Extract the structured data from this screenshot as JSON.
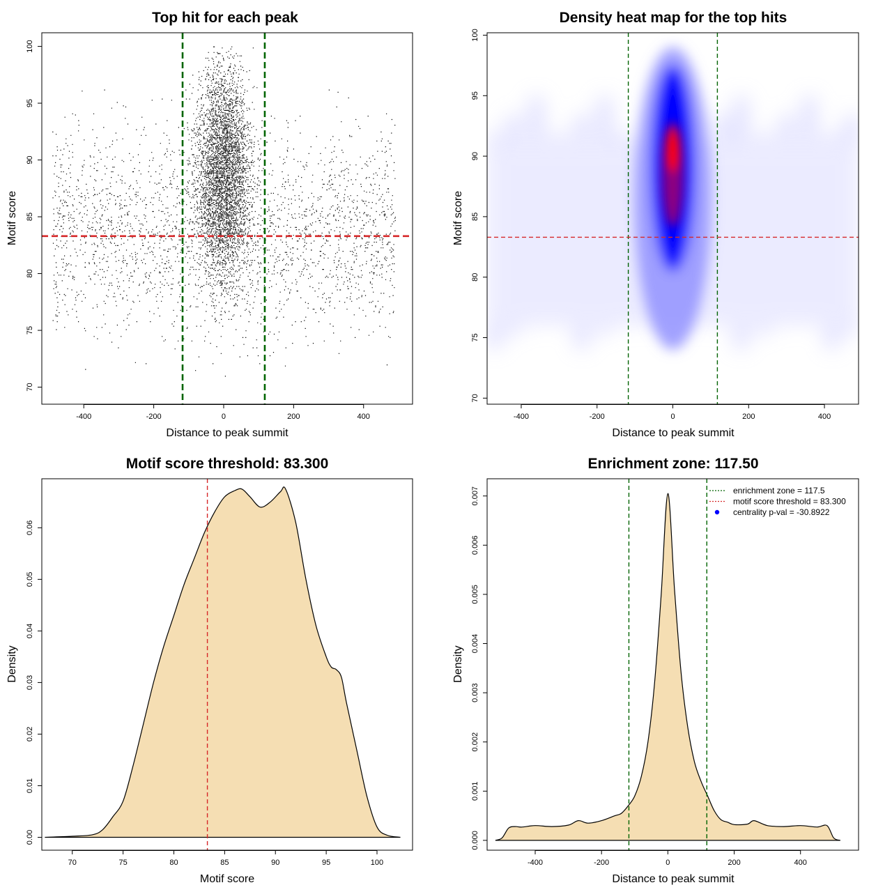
{
  "colors": {
    "threshold": "#d62728",
    "zone": "#006400",
    "fill": "#f5deb3",
    "heat_low": "#ffffff",
    "heat_mid": "#0000ff",
    "heat_high": "#ff0000",
    "point": "#000000"
  },
  "chart_data": [
    {
      "id": "scatter",
      "type": "scatter",
      "title": "Top hit for each peak",
      "xlabel": "Distance to peak summit",
      "ylabel": "Motif score",
      "xlim": [
        -520,
        540
      ],
      "ylim": [
        68.5,
        101.2
      ],
      "xticks": [
        -400,
        -200,
        0,
        200,
        400
      ],
      "xtick_labels": [
        "-400",
        "-200",
        "0",
        "200",
        "400"
      ],
      "yticks": [
        70,
        75,
        80,
        85,
        90,
        95,
        100
      ],
      "ytick_labels": [
        "70",
        "75",
        "80",
        "85",
        "90",
        "95",
        "100"
      ],
      "hline": 83.3,
      "vlines": [
        -117.5,
        117.5
      ],
      "point_clusters": [
        {
          "name": "central",
          "n": 4200,
          "x_center": 0,
          "x_sd": 38,
          "y_center": 89,
          "y_sd": 4.8
        },
        {
          "name": "background",
          "n": 2600,
          "x_range": [
            -490,
            490
          ],
          "y_center": 84,
          "y_sd": 4.5
        }
      ]
    },
    {
      "id": "heatmap",
      "type": "heatmap",
      "title": "Density heat map for the top hits",
      "xlabel": "Distance to peak summit",
      "ylabel": "Motif score",
      "xlim": [
        -490,
        490
      ],
      "ylim": [
        69.5,
        100.2
      ],
      "xticks": [
        -400,
        -200,
        0,
        200,
        400
      ],
      "xtick_labels": [
        "-400",
        "-200",
        "0",
        "200",
        "400"
      ],
      "yticks": [
        70,
        75,
        80,
        85,
        90,
        95,
        100
      ],
      "ytick_labels": [
        "70",
        "75",
        "80",
        "85",
        "90",
        "95",
        "100"
      ],
      "hline": 83.3,
      "vlines": [
        -117.5,
        117.5
      ],
      "density_peak": {
        "x": 0,
        "y": 90.5
      }
    },
    {
      "id": "score-density",
      "type": "area",
      "title": "Motif score threshold: 83.300",
      "xlabel": "Motif score",
      "ylabel": "Density",
      "xlim": [
        67,
        103.5
      ],
      "ylim": [
        -0.0025,
        0.0695
      ],
      "xticks": [
        70,
        75,
        80,
        85,
        90,
        95,
        100
      ],
      "xtick_labels": [
        "70",
        "75",
        "80",
        "85",
        "90",
        "95",
        "100"
      ],
      "yticks": [
        0,
        0.01,
        0.02,
        0.03,
        0.04,
        0.05,
        0.06
      ],
      "ytick_labels": [
        "0.00",
        "0.01",
        "0.02",
        "0.03",
        "0.04",
        "0.05",
        "0.06"
      ],
      "vlines": [
        83.3
      ],
      "x": [
        67.3,
        70,
        72,
        73,
        74,
        75,
        76,
        77,
        78,
        79,
        80,
        81,
        82,
        83,
        84,
        85,
        86,
        86.7,
        87.5,
        88.5,
        89.5,
        90.5,
        91,
        92,
        93,
        94,
        95,
        95.5,
        96,
        96.5,
        97,
        98,
        99,
        100,
        101,
        102.3
      ],
      "y": [
        0,
        0.0002,
        0.0005,
        0.0015,
        0.004,
        0.007,
        0.014,
        0.022,
        0.03,
        0.037,
        0.043,
        0.049,
        0.054,
        0.059,
        0.063,
        0.066,
        0.0672,
        0.0675,
        0.066,
        0.064,
        0.065,
        0.067,
        0.0675,
        0.061,
        0.05,
        0.041,
        0.035,
        0.033,
        0.0325,
        0.031,
        0.026,
        0.017,
        0.008,
        0.002,
        0.0004,
        0
      ]
    },
    {
      "id": "distance-density",
      "type": "area",
      "title": "Enrichment zone: 117.50",
      "xlabel": "Distance to peak summit",
      "ylabel": "Density",
      "xlim": [
        -545,
        575
      ],
      "ylim": [
        -0.0002,
        0.00735
      ],
      "xticks": [
        -400,
        -200,
        0,
        200,
        400
      ],
      "xtick_labels": [
        "-400",
        "-200",
        "0",
        "200",
        "400"
      ],
      "yticks": [
        0,
        0.001,
        0.002,
        0.003,
        0.004,
        0.005,
        0.006,
        0.007
      ],
      "ytick_labels": [
        "0.000",
        "0.001",
        "0.002",
        "0.003",
        "0.004",
        "0.005",
        "0.006",
        "0.007"
      ],
      "vlines": [
        -117.5,
        117.5
      ],
      "x": [
        -520,
        -500,
        -480,
        -460,
        -440,
        -400,
        -350,
        -300,
        -270,
        -240,
        -200,
        -160,
        -140,
        -120,
        -100,
        -80,
        -60,
        -40,
        -20,
        0,
        20,
        40,
        60,
        80,
        100,
        120,
        140,
        160,
        180,
        200,
        240,
        260,
        300,
        350,
        400,
        450,
        480,
        500,
        520
      ],
      "y": [
        0,
        5e-05,
        0.00025,
        0.00028,
        0.00027,
        0.0003,
        0.00028,
        0.00031,
        0.0004,
        0.00035,
        0.0004,
        0.0005,
        0.00055,
        0.0007,
        0.0009,
        0.0013,
        0.002,
        0.0032,
        0.005,
        0.00705,
        0.0051,
        0.0034,
        0.0023,
        0.0016,
        0.0012,
        0.0009,
        0.0006,
        0.00042,
        0.00037,
        0.00032,
        0.00033,
        0.0004,
        0.0003,
        0.00028,
        0.0003,
        0.00027,
        0.0003,
        5e-05,
        0
      ],
      "legend": {
        "position": "top-right",
        "entries": [
          {
            "label": "enrichment zone = 117.5",
            "style": "dotted",
            "color": "#006400"
          },
          {
            "label": "motif score threshold = 83.300",
            "style": "dotted",
            "color": "#d62728"
          },
          {
            "label": "centrality p-val = -30.8922",
            "style": "dot",
            "color": "#0000ff"
          }
        ]
      }
    }
  ]
}
